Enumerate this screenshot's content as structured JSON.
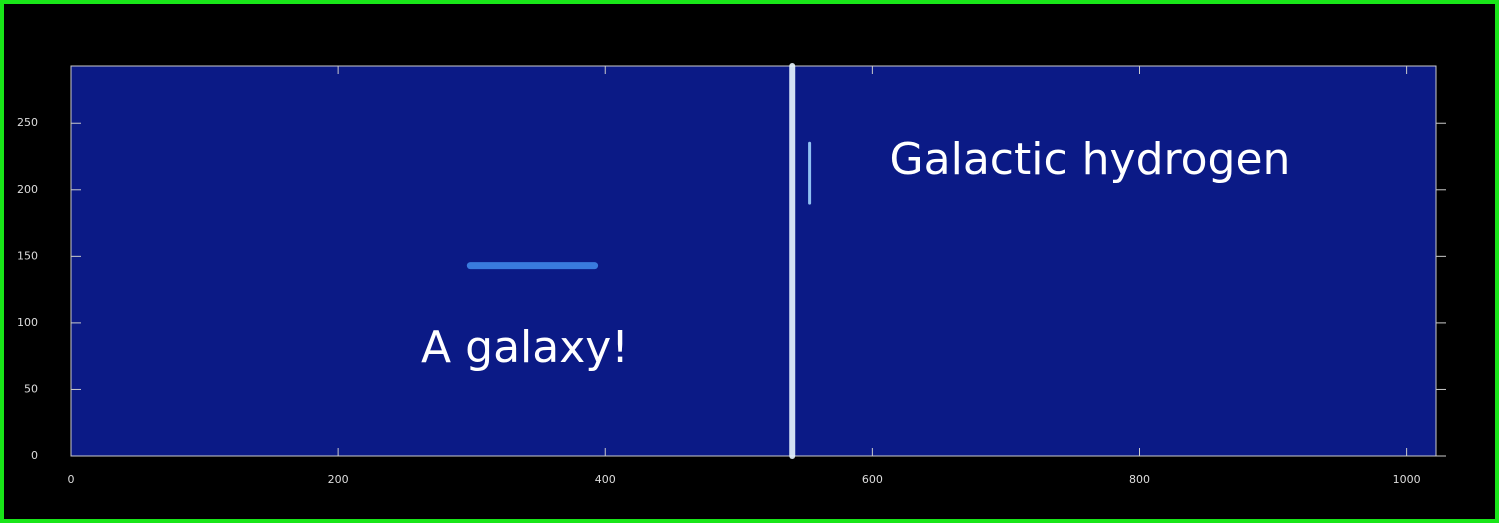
{
  "chart_data": {
    "type": "spectrogram",
    "xlim": [
      0,
      1022
    ],
    "ylim": [
      0,
      293
    ],
    "xticks": [
      0,
      200,
      400,
      600,
      800,
      1000
    ],
    "yticks": [
      0,
      50,
      100,
      150,
      200,
      250
    ],
    "background": "#0b1a86",
    "annotations": [
      "A galaxy!",
      "Galactic hydrogen"
    ],
    "features": [
      {
        "x": [
          540,
          540
        ],
        "y": [
          0,
          293
        ],
        "color": "#e8f6ff"
      },
      {
        "x": [
          553,
          553
        ],
        "y": [
          190,
          235
        ],
        "color": "#9fd4ff"
      },
      {
        "x": [
          299,
          392
        ],
        "y": [
          143,
          143
        ],
        "color": "#3f86e8"
      }
    ]
  }
}
